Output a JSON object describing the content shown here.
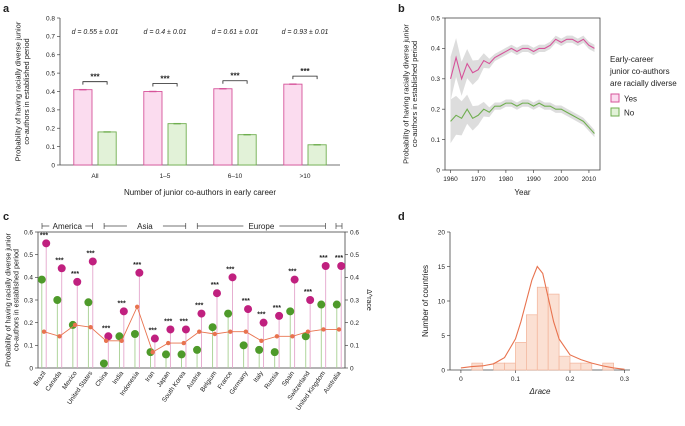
{
  "chart_data": [
    {
      "panel": "a",
      "type": "bar",
      "ylabel": "Probability of having racially diverse junior co-authors in established period",
      "xlabel": "Number of junior co-authors in early career",
      "ylim": [
        0,
        0.8
      ],
      "yticks": [
        "0",
        "0.1",
        "0.2",
        "0.3",
        "0.4",
        "0.5",
        "0.6",
        "0.7",
        "0.8"
      ],
      "categories": [
        "All",
        "1–5",
        "6–10",
        ">10"
      ],
      "series": [
        {
          "name": "Yes",
          "values": [
            0.41,
            0.4,
            0.415,
            0.44
          ],
          "color": "#d6539a",
          "fill": "#fbdcef"
        },
        {
          "name": "No",
          "values": [
            0.18,
            0.225,
            0.165,
            0.11
          ],
          "color": "#6fae4f",
          "fill": "#e2f2d8"
        }
      ],
      "annotations": [
        "d = 0.55 ± 0.01",
        "d = 0.4 ± 0.01",
        "d = 0.61 ± 0.01",
        "d = 0.93 ± 0.01"
      ],
      "significance": "***"
    },
    {
      "panel": "b",
      "type": "line",
      "ylabel": "Probability of having racially diverse junior co-authors in established period",
      "xlabel": "Year",
      "xlim": [
        1958,
        2014
      ],
      "ylim": [
        0,
        0.5
      ],
      "xticks": [
        "1960",
        "1970",
        "1980",
        "1990",
        "2000",
        "2010"
      ],
      "yticks": [
        "0",
        "0.1",
        "0.2",
        "0.3",
        "0.4",
        "0.5"
      ],
      "legend_title": "Early-career junior co-authors are racially diverse",
      "series": [
        {
          "name": "Yes",
          "color": "#d6539a",
          "x": [
            1960,
            1962,
            1964,
            1966,
            1968,
            1970,
            1972,
            1974,
            1976,
            1978,
            1980,
            1982,
            1984,
            1986,
            1988,
            1990,
            1992,
            1994,
            1996,
            1998,
            2000,
            2002,
            2004,
            2006,
            2008,
            2010,
            2012
          ],
          "y": [
            0.3,
            0.37,
            0.3,
            0.35,
            0.32,
            0.33,
            0.36,
            0.35,
            0.37,
            0.38,
            0.39,
            0.4,
            0.39,
            0.4,
            0.4,
            0.39,
            0.4,
            0.4,
            0.41,
            0.43,
            0.42,
            0.43,
            0.43,
            0.42,
            0.43,
            0.41,
            0.4
          ]
        },
        {
          "name": "No",
          "color": "#6fae4f",
          "x": [
            1960,
            1962,
            1964,
            1966,
            1968,
            1970,
            1972,
            1974,
            1976,
            1978,
            1980,
            1982,
            1984,
            1986,
            1988,
            1990,
            1992,
            1994,
            1996,
            1998,
            2000,
            2002,
            2004,
            2006,
            2008,
            2010,
            2012
          ],
          "y": [
            0.16,
            0.18,
            0.17,
            0.2,
            0.17,
            0.18,
            0.2,
            0.19,
            0.21,
            0.21,
            0.22,
            0.22,
            0.21,
            0.22,
            0.22,
            0.21,
            0.22,
            0.21,
            0.21,
            0.2,
            0.2,
            0.19,
            0.18,
            0.17,
            0.16,
            0.14,
            0.12
          ]
        }
      ]
    },
    {
      "panel": "c",
      "type": "scatter",
      "ylabel": "Probability of having racially diverse junior co-authors in established period",
      "ylabel_right": "Δ^race",
      "ylim": [
        0,
        0.6
      ],
      "yticks": [
        "0",
        "0.1",
        "0.2",
        "0.3",
        "0.4",
        "0.5",
        "0.6"
      ],
      "regions": [
        "America",
        "Asia",
        "Europe"
      ],
      "countries": [
        "Brazil",
        "Canada",
        "Mexico",
        "United States",
        "China",
        "India",
        "Indonesia",
        "Iran",
        "Japan",
        "South Korea",
        "Austria",
        "Belgium",
        "France",
        "Germany",
        "Italy",
        "Russia",
        "Spain",
        "Switzerland",
        "United Kingdom",
        "Australia"
      ],
      "series": [
        {
          "name": "Yes",
          "color": "#c0207f",
          "values": [
            0.55,
            0.44,
            0.38,
            0.47,
            0.14,
            0.25,
            0.42,
            0.13,
            0.17,
            0.17,
            0.24,
            0.33,
            0.4,
            0.26,
            0.2,
            0.23,
            0.39,
            0.3,
            0.45,
            0.45
          ]
        },
        {
          "name": "No",
          "color": "#4e9a2a",
          "values": [
            0.39,
            0.3,
            0.19,
            0.29,
            0.02,
            0.14,
            0.15,
            0.07,
            0.06,
            0.06,
            0.08,
            0.18,
            0.24,
            0.1,
            0.08,
            0.07,
            0.25,
            0.14,
            0.28,
            0.28
          ]
        },
        {
          "name": "Δrace",
          "color": "#e8734f",
          "values": [
            0.16,
            0.14,
            0.19,
            0.18,
            0.12,
            0.12,
            0.27,
            0.07,
            0.11,
            0.11,
            0.16,
            0.15,
            0.16,
            0.16,
            0.12,
            0.14,
            0.14,
            0.16,
            0.17,
            0.17
          ]
        }
      ],
      "significance": "***"
    },
    {
      "panel": "d",
      "type": "histogram",
      "xlabel": "Δrace",
      "ylabel": "Number of countries",
      "xlim": [
        -0.02,
        0.31
      ],
      "ylim": [
        0,
        20
      ],
      "xticks": [
        "0",
        "0.1",
        "0.2",
        "0.3"
      ],
      "yticks": [
        "0",
        "5",
        "10",
        "15",
        "20"
      ],
      "bins": [
        0.02,
        0.04,
        0.06,
        0.08,
        0.1,
        0.12,
        0.14,
        0.16,
        0.18,
        0.2,
        0.22,
        0.24,
        0.26,
        0.28
      ],
      "counts": [
        1,
        0,
        1,
        1,
        4,
        8,
        12,
        11,
        2,
        1,
        1,
        0,
        1,
        0
      ],
      "bin_width": 0.02,
      "kde_x": [
        0.0,
        0.02,
        0.04,
        0.06,
        0.08,
        0.1,
        0.11,
        0.12,
        0.13,
        0.14,
        0.15,
        0.16,
        0.17,
        0.18,
        0.2,
        0.22,
        0.24,
        0.26,
        0.28,
        0.3
      ],
      "kde_y": [
        0.3,
        0.5,
        0.6,
        0.9,
        1.8,
        4.5,
        7.0,
        10.0,
        13.0,
        15.0,
        14.0,
        10.5,
        7.0,
        4.5,
        2.2,
        1.5,
        1.0,
        0.6,
        0.3,
        0.1
      ]
    }
  ],
  "panel_labels": [
    "a",
    "b",
    "c",
    "d"
  ],
  "legend_b": {
    "title_line1": "Early-career",
    "title_line2": "junior co-authors",
    "title_line3": "are racially diverse",
    "yes": "Yes",
    "no": "No"
  },
  "panel_c_regions": {
    "america": "America",
    "asia": "Asia",
    "europe": "Europe"
  }
}
